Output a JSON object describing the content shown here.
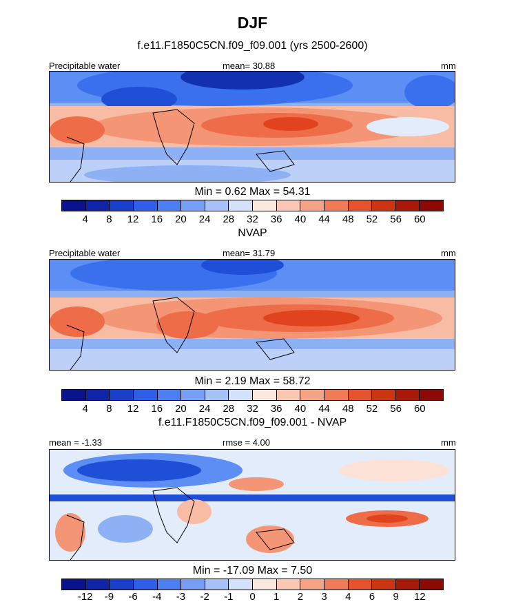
{
  "chart_data": [
    {
      "type": "heatmap",
      "panel_title": "f.e11.F1850C5CN.f09_f09.001 (yrs 2500-2600)",
      "left_label": "Precipitable water",
      "center_label": "mean=  30.88",
      "right_label": "mm",
      "stats": "Min =   0.62 Max =  54.31",
      "levels": [
        "4",
        "8",
        "12",
        "16",
        "20",
        "24",
        "28",
        "32",
        "36",
        "40",
        "44",
        "48",
        "52",
        "56",
        "60"
      ],
      "min": 0.62,
      "max": 54.31,
      "mean": 30.88
    },
    {
      "type": "heatmap",
      "panel_title": "NVAP",
      "left_label": "Precipitable water",
      "center_label": "mean=  31.79",
      "right_label": "mm",
      "stats": "Min =   2.19 Max =  58.72",
      "levels": [
        "4",
        "8",
        "12",
        "16",
        "20",
        "24",
        "28",
        "32",
        "36",
        "40",
        "44",
        "48",
        "52",
        "56",
        "60"
      ],
      "min": 2.19,
      "max": 58.72,
      "mean": 31.79
    },
    {
      "type": "heatmap",
      "panel_title": "f.e11.F1850C5CN.f09_f09.001 - NVAP",
      "left_label": "mean =  -1.33",
      "center_label": "rmse =   4.00",
      "right_label": "mm",
      "stats": "Min = -17.09 Max =   7.50",
      "levels": [
        "-12",
        "-9",
        "-6",
        "-4",
        "-3",
        "-2",
        "-1",
        "0",
        "1",
        "2",
        "3",
        "4",
        "6",
        "9",
        "12"
      ],
      "min": -17.09,
      "max": 7.5,
      "mean": -1.33
    }
  ],
  "page": {
    "season_title": "DJF"
  },
  "colors": {
    "palette": [
      "#08138c",
      "#1230b0",
      "#1f4fd6",
      "#3a70ee",
      "#5d8ef4",
      "#8eb1f6",
      "#bcd0f8",
      "#e3ecfb",
      "#fbe1d6",
      "#f8bca4",
      "#f49675",
      "#ee6c48",
      "#e0431e",
      "#b9280e",
      "#8b0b04"
    ]
  }
}
